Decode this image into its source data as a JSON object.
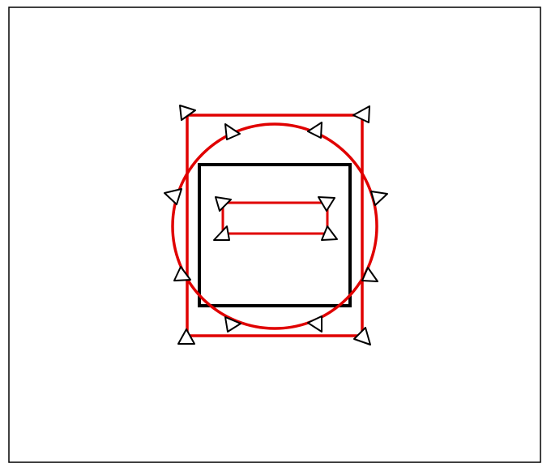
{
  "colors": {
    "background": "#ffffff",
    "frame": "#000000",
    "outline": "#e00000",
    "box": "#000000",
    "marker_fill": "#ffffff",
    "marker_stroke": "#000000"
  },
  "shapes": {
    "outer_rectangle": {
      "color": "red"
    },
    "circle": {
      "color": "red"
    },
    "black_square": {
      "color": "black"
    },
    "inner_rectangle": {
      "color": "red"
    }
  },
  "markers": {
    "icon": "triangle-marker-icon",
    "count": 16
  }
}
